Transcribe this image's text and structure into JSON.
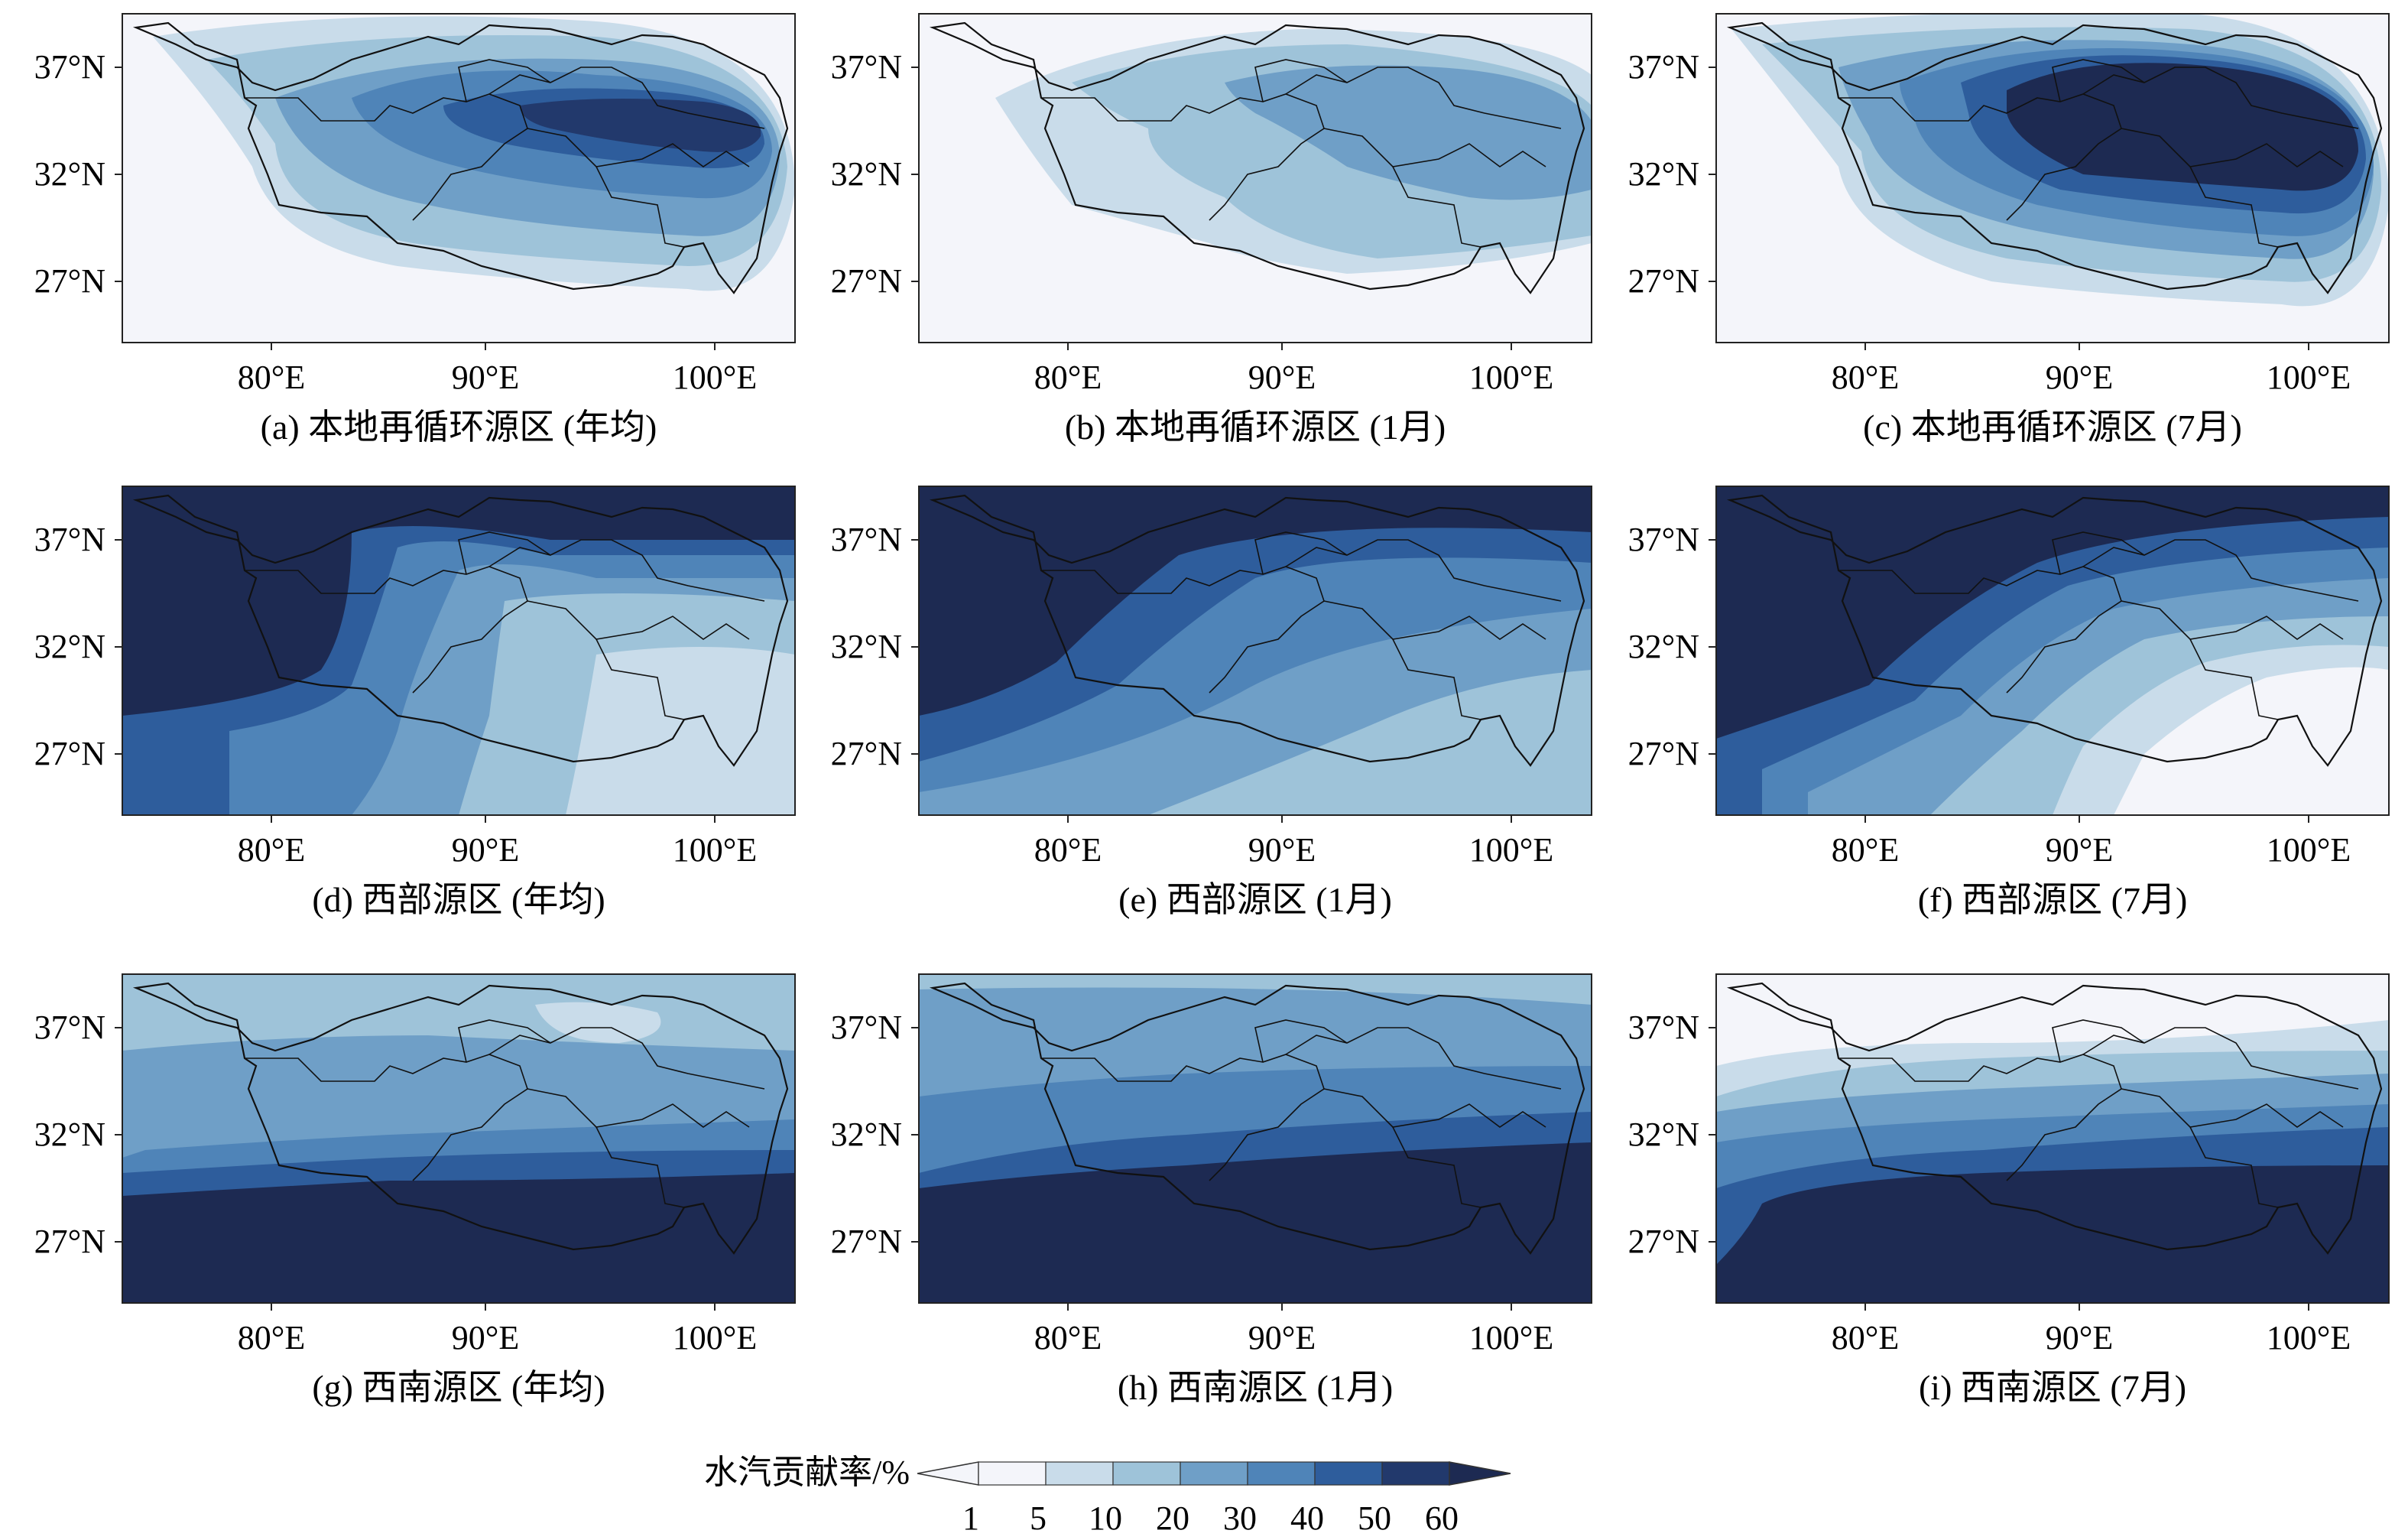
{
  "figure": {
    "panels": [
      {
        "id": "a",
        "caption": "(a) 本地再循环源区 (年均)",
        "source": "local",
        "period": "annual"
      },
      {
        "id": "b",
        "caption": "(b) 本地再循环源区 (1月)",
        "source": "local",
        "period": "jan"
      },
      {
        "id": "c",
        "caption": "(c) 本地再循环源区 (7月)",
        "source": "local",
        "period": "jul"
      },
      {
        "id": "d",
        "caption": "(d) 西部源区 (年均)",
        "source": "west",
        "period": "annual"
      },
      {
        "id": "e",
        "caption": "(e) 西部源区 (1月)",
        "source": "west",
        "period": "jan"
      },
      {
        "id": "f",
        "caption": "(f) 西部源区 (7月)",
        "source": "west",
        "period": "jul"
      },
      {
        "id": "g",
        "caption": "(g) 西南源区 (年均)",
        "source": "southwest",
        "period": "annual"
      },
      {
        "id": "h",
        "caption": "(h) 西南源区 (1月)",
        "source": "southwest",
        "period": "jan"
      },
      {
        "id": "i",
        "caption": "(i) 西南源区 (7月)",
        "source": "southwest",
        "period": "jul"
      }
    ],
    "lat_ticks": [
      "37°N",
      "32°N",
      "27°N"
    ],
    "lon_ticks": [
      "80°E",
      "90°E",
      "100°E"
    ],
    "colorbar": {
      "title": "水汽贡献率/%",
      "levels": [
        "1",
        "5",
        "10",
        "20",
        "30",
        "40",
        "50",
        "60"
      ],
      "colors": [
        "#f4f5fa",
        "#c9dcea",
        "#9ec3d9",
        "#6f9fc7",
        "#4f84b8",
        "#2e5d9c",
        "#22396c",
        "#1d2a52"
      ]
    }
  }
}
